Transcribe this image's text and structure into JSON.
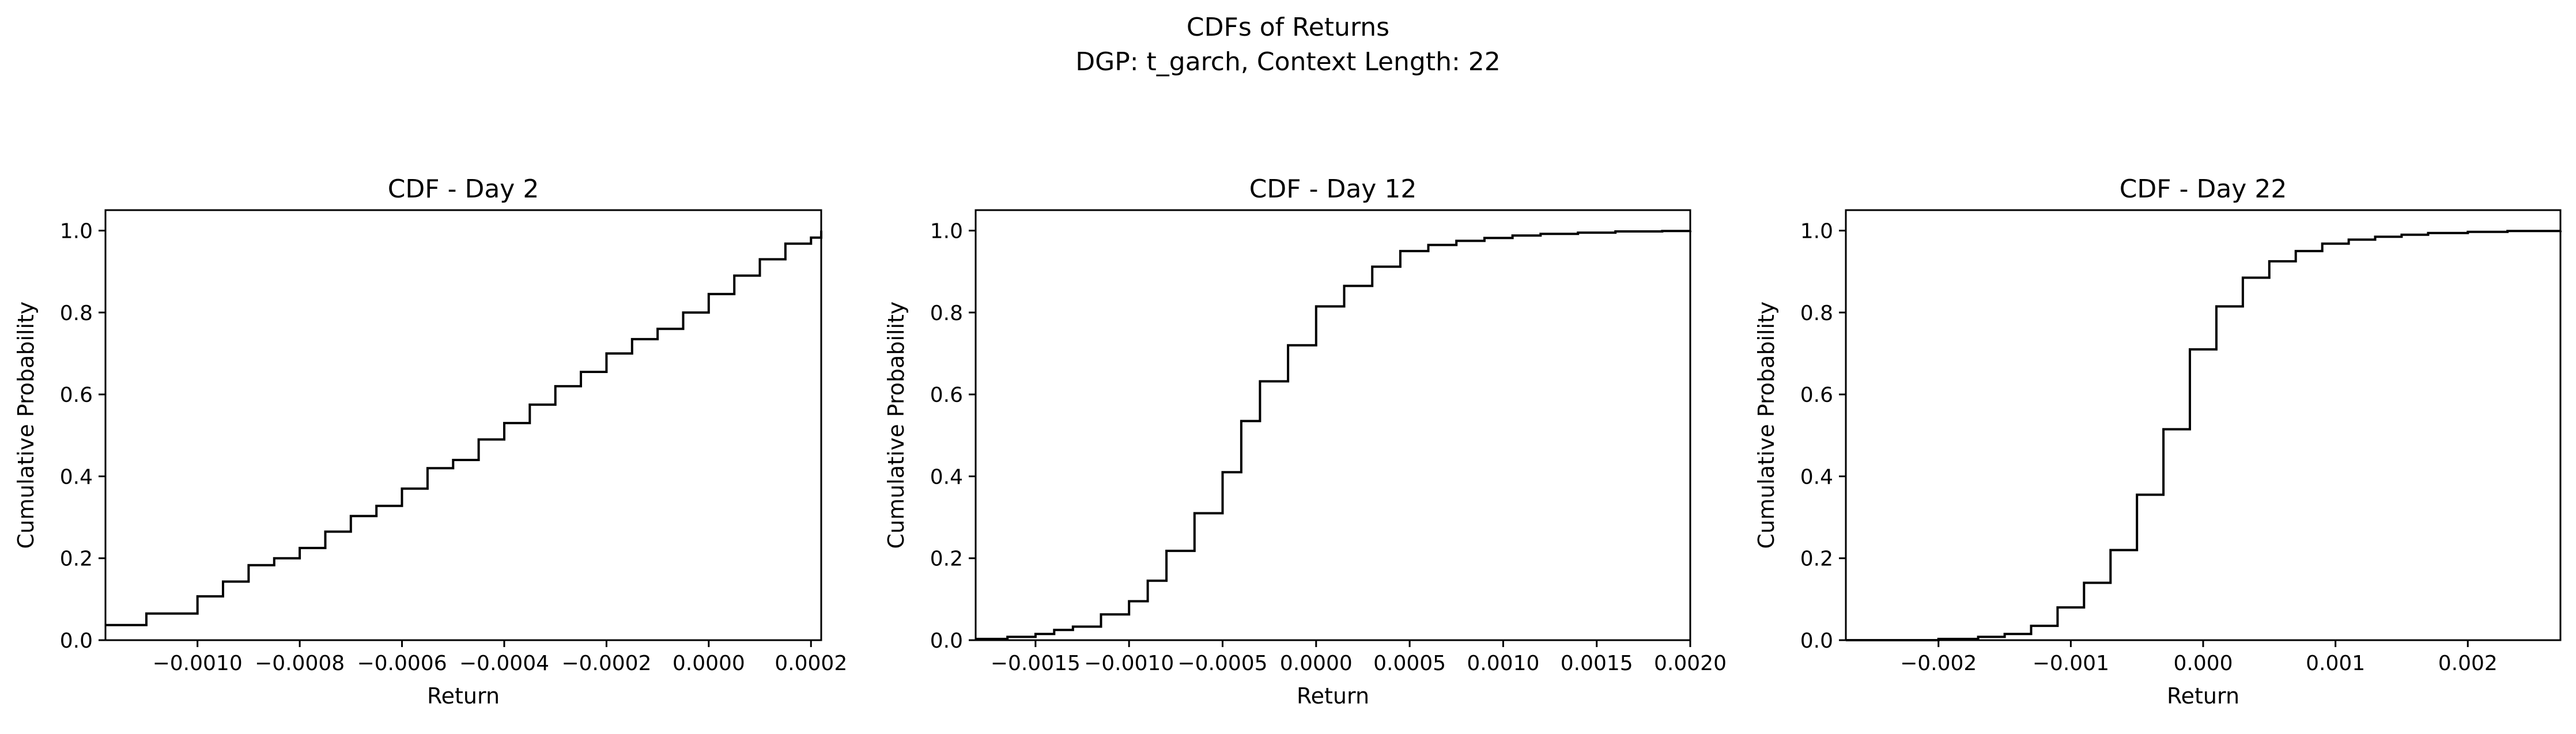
{
  "figure": {
    "suptitle": "CDFs of Returns",
    "subtitle": "DGP: t_garch, Context Length: 22"
  },
  "chart_data": [
    {
      "type": "line",
      "step": true,
      "title": "CDF - Day 2",
      "xlabel": "Return",
      "ylabel": "Cumulative Probability",
      "xlim": [
        -0.00118,
        0.00022
      ],
      "ylim": [
        0,
        1.05
      ],
      "xticks": [
        -0.001,
        -0.0008,
        -0.0006,
        -0.0004,
        -0.0002,
        0.0,
        0.0002
      ],
      "xtick_labels": [
        "−0.0010",
        "−0.0008",
        "−0.0006",
        "−0.0004",
        "−0.0002",
        "0.0000",
        "0.0002"
      ],
      "yticks": [
        0.0,
        0.2,
        0.4,
        0.6,
        0.8,
        1.0
      ],
      "ytick_labels": [
        "0.0",
        "0.2",
        "0.4",
        "0.6",
        "0.8",
        "1.0"
      ],
      "series": [
        {
          "color": "#000000",
          "x": [
            -0.00118,
            -0.0011,
            -0.001,
            -0.00095,
            -0.0009,
            -0.00085,
            -0.0008,
            -0.00075,
            -0.0007,
            -0.00065,
            -0.0006,
            -0.00055,
            -0.0005,
            -0.00045,
            -0.0004,
            -0.00035,
            -0.0003,
            -0.00025,
            -0.0002,
            -0.00015,
            -0.0001,
            -5e-05,
            0.0,
            5e-05,
            0.0001,
            0.00015,
            0.0002,
            0.00022
          ],
          "y": [
            0.037,
            0.065,
            0.107,
            0.143,
            0.183,
            0.2,
            0.225,
            0.265,
            0.303,
            0.328,
            0.37,
            0.42,
            0.44,
            0.49,
            0.53,
            0.575,
            0.62,
            0.655,
            0.7,
            0.735,
            0.76,
            0.8,
            0.845,
            0.89,
            0.93,
            0.968,
            0.983,
            1.0
          ]
        }
      ]
    },
    {
      "type": "line",
      "step": true,
      "title": "CDF - Day 12",
      "xlabel": "Return",
      "ylabel": "Cumulative Probability",
      "xlim": [
        -0.00182,
        0.002
      ],
      "ylim": [
        0,
        1.05
      ],
      "xticks": [
        -0.0015,
        -0.001,
        -0.0005,
        0.0,
        0.0005,
        0.001,
        0.0015,
        0.002
      ],
      "xtick_labels": [
        "−0.0015",
        "−0.0010",
        "−0.0005",
        "0.0000",
        "0.0005",
        "0.0010",
        "0.0015",
        "0.0020"
      ],
      "yticks": [
        0.0,
        0.2,
        0.4,
        0.6,
        0.8,
        1.0
      ],
      "ytick_labels": [
        "0.0",
        "0.2",
        "0.4",
        "0.6",
        "0.8",
        "1.0"
      ],
      "series": [
        {
          "color": "#000000",
          "x": [
            -0.00182,
            -0.00165,
            -0.0015,
            -0.0014,
            -0.0013,
            -0.00115,
            -0.001,
            -0.0009,
            -0.0008,
            -0.00065,
            -0.0005,
            -0.0004,
            -0.0003,
            -0.00015,
            0.0,
            0.00015,
            0.0003,
            0.00045,
            0.0006,
            0.00075,
            0.0009,
            0.00105,
            0.0012,
            0.0014,
            0.0016,
            0.00185,
            0.002
          ],
          "y": [
            0.003,
            0.008,
            0.015,
            0.025,
            0.033,
            0.063,
            0.095,
            0.145,
            0.218,
            0.31,
            0.41,
            0.535,
            0.632,
            0.72,
            0.815,
            0.865,
            0.912,
            0.95,
            0.965,
            0.975,
            0.982,
            0.988,
            0.992,
            0.995,
            0.998,
            0.999,
            1.0
          ]
        }
      ]
    },
    {
      "type": "line",
      "step": true,
      "title": "CDF - Day 22",
      "xlabel": "Return",
      "ylabel": "Cumulative Probability",
      "xlim": [
        -0.0027,
        0.0027
      ],
      "ylim": [
        0,
        1.05
      ],
      "xticks": [
        -0.002,
        -0.001,
        0.0,
        0.001,
        0.002
      ],
      "xtick_labels": [
        "−0.002",
        "−0.001",
        "0.000",
        "0.001",
        "0.002"
      ],
      "yticks": [
        0.0,
        0.2,
        0.4,
        0.6,
        0.8,
        1.0
      ],
      "ytick_labels": [
        "0.0",
        "0.2",
        "0.4",
        "0.6",
        "0.8",
        "1.0"
      ],
      "series": [
        {
          "color": "#000000",
          "x": [
            -0.0027,
            -0.002,
            -0.0017,
            -0.0015,
            -0.0013,
            -0.0011,
            -0.0009,
            -0.0007,
            -0.0005,
            -0.0003,
            -0.0001,
            0.0001,
            0.0003,
            0.0005,
            0.0007,
            0.0009,
            0.0011,
            0.0013,
            0.0015,
            0.0017,
            0.002,
            0.0023,
            0.0027
          ],
          "y": [
            0.0,
            0.003,
            0.008,
            0.015,
            0.035,
            0.08,
            0.14,
            0.22,
            0.355,
            0.515,
            0.71,
            0.815,
            0.885,
            0.925,
            0.95,
            0.968,
            0.978,
            0.985,
            0.99,
            0.994,
            0.997,
            0.999,
            1.0
          ]
        }
      ]
    }
  ]
}
